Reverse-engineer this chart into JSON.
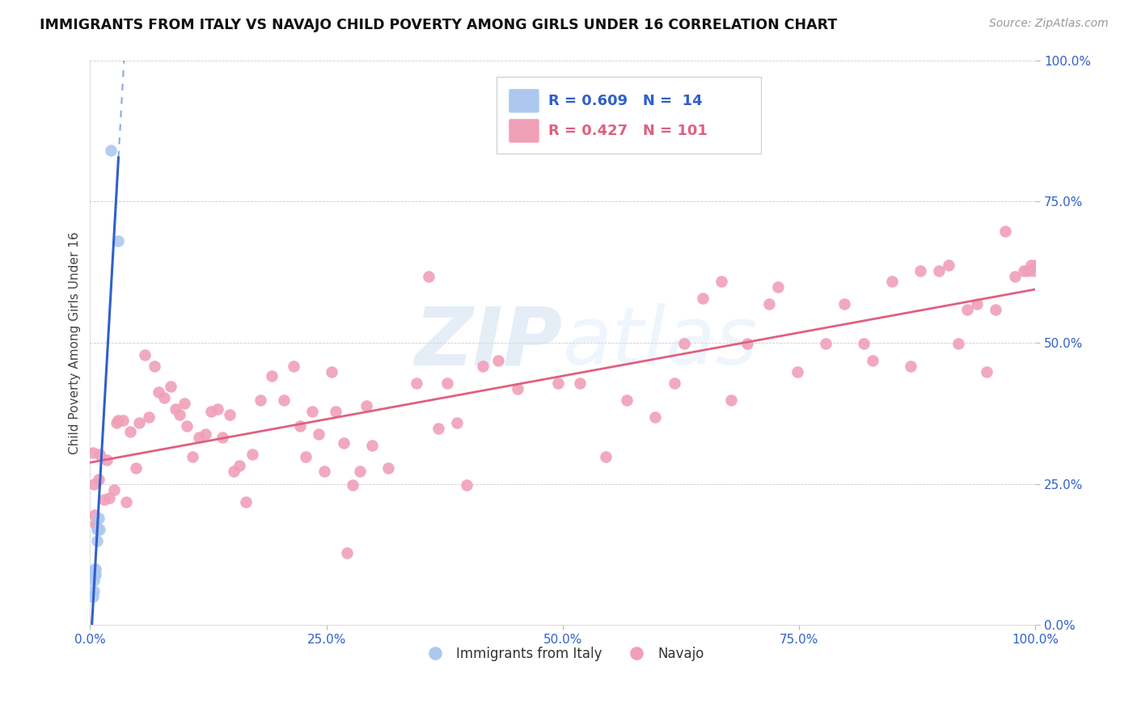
{
  "title": "IMMIGRANTS FROM ITALY VS NAVAJO CHILD POVERTY AMONG GIRLS UNDER 16 CORRELATION CHART",
  "source": "Source: ZipAtlas.com",
  "ylabel": "Child Poverty Among Girls Under 16",
  "legend_blue_label": "Immigrants from Italy",
  "legend_pink_label": "Navajo",
  "blue_R": 0.609,
  "blue_N": 14,
  "pink_R": 0.427,
  "pink_N": 101,
  "blue_color": "#adc8f0",
  "blue_line_color": "#3060cc",
  "pink_color": "#f0a0b8",
  "pink_line_color": "#e06080",
  "watermark_zip": "ZIP",
  "watermark_atlas": "atlas",
  "xlim": [
    0.0,
    1.0
  ],
  "ylim": [
    0.0,
    1.0
  ],
  "xticks": [
    0.0,
    0.25,
    0.5,
    0.75,
    1.0
  ],
  "yticks": [
    0.0,
    0.25,
    0.5,
    0.75,
    1.0
  ],
  "xticklabels": [
    "0.0%",
    "25.0%",
    "50.0%",
    "75.0%",
    "100.0%"
  ],
  "yticklabels": [
    "0.0%",
    "25.0%",
    "50.0%",
    "75.0%",
    "100.0%"
  ],
  "blue_points_x": [
    0.003,
    0.004,
    0.004,
    0.005,
    0.005,
    0.006,
    0.006,
    0.007,
    0.007,
    0.008,
    0.009,
    0.01,
    0.022,
    0.03
  ],
  "blue_points_y": [
    0.05,
    0.06,
    0.08,
    0.09,
    0.1,
    0.09,
    0.1,
    0.15,
    0.17,
    0.17,
    0.19,
    0.17,
    0.84,
    0.68
  ],
  "pink_points_x": [
    0.003,
    0.004,
    0.005,
    0.006,
    0.007,
    0.009,
    0.01,
    0.015,
    0.018,
    0.02,
    0.025,
    0.028,
    0.03,
    0.035,
    0.038,
    0.042,
    0.048,
    0.052,
    0.058,
    0.062,
    0.068,
    0.072,
    0.078,
    0.085,
    0.09,
    0.095,
    0.1,
    0.102,
    0.108,
    0.115,
    0.122,
    0.128,
    0.135,
    0.14,
    0.148,
    0.152,
    0.158,
    0.165,
    0.172,
    0.18,
    0.192,
    0.205,
    0.215,
    0.222,
    0.228,
    0.235,
    0.242,
    0.248,
    0.255,
    0.26,
    0.268,
    0.272,
    0.278,
    0.285,
    0.292,
    0.298,
    0.315,
    0.345,
    0.358,
    0.368,
    0.378,
    0.388,
    0.398,
    0.415,
    0.432,
    0.452,
    0.495,
    0.518,
    0.545,
    0.568,
    0.598,
    0.618,
    0.628,
    0.648,
    0.668,
    0.678,
    0.695,
    0.718,
    0.728,
    0.748,
    0.778,
    0.798,
    0.818,
    0.828,
    0.848,
    0.868,
    0.878,
    0.898,
    0.908,
    0.918,
    0.928,
    0.938,
    0.948,
    0.958,
    0.968,
    0.978,
    0.988,
    0.992,
    0.995,
    0.998,
    1.0
  ],
  "pink_points_y": [
    0.305,
    0.25,
    0.195,
    0.18,
    0.172,
    0.258,
    0.302,
    0.222,
    0.292,
    0.225,
    0.24,
    0.358,
    0.362,
    0.362,
    0.218,
    0.342,
    0.278,
    0.358,
    0.478,
    0.368,
    0.458,
    0.412,
    0.402,
    0.422,
    0.382,
    0.372,
    0.392,
    0.352,
    0.298,
    0.332,
    0.338,
    0.378,
    0.382,
    0.332,
    0.372,
    0.272,
    0.282,
    0.218,
    0.302,
    0.398,
    0.442,
    0.398,
    0.458,
    0.352,
    0.298,
    0.378,
    0.338,
    0.272,
    0.448,
    0.378,
    0.322,
    0.128,
    0.248,
    0.272,
    0.388,
    0.318,
    0.278,
    0.428,
    0.618,
    0.348,
    0.428,
    0.358,
    0.248,
    0.458,
    0.468,
    0.418,
    0.428,
    0.428,
    0.298,
    0.398,
    0.368,
    0.428,
    0.498,
    0.578,
    0.608,
    0.398,
    0.498,
    0.568,
    0.598,
    0.448,
    0.498,
    0.568,
    0.498,
    0.468,
    0.608,
    0.458,
    0.628,
    0.628,
    0.638,
    0.498,
    0.558,
    0.568,
    0.448,
    0.558,
    0.698,
    0.618,
    0.628,
    0.628,
    0.638,
    0.628,
    0.638
  ],
  "figsize": [
    14.06,
    8.92
  ],
  "dpi": 100
}
